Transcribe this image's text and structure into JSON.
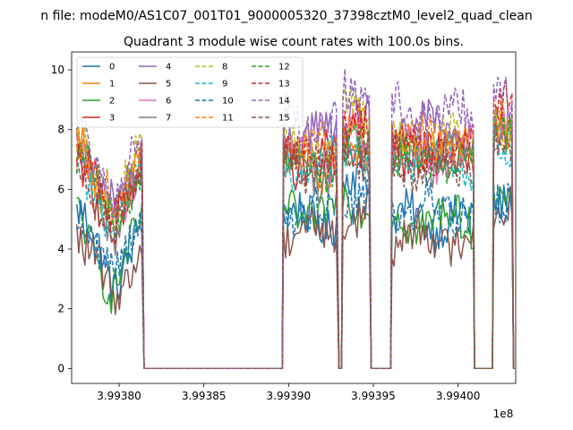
{
  "figure": {
    "suptitle": "n file: modeM0/AS1C07_001T01_9000005320_37398cztM0_level2_quad_clean",
    "title": "Quadrant 3 module wise count rates with 100.0s bins.",
    "x_offset_label": "1e8"
  },
  "chart_data": {
    "type": "line",
    "title": "Quadrant 3 module wise count rates with 100.0s bins.",
    "xlabel": "",
    "ylabel": "",
    "x_scale_factor": "1e8",
    "xlim": [
      3.993772,
      3.994034
    ],
    "ylim": [
      -0.5,
      10.6
    ],
    "grid": false,
    "legend_position": "top-left",
    "legend_columns": 4,
    "x_ticks": [
      3.9938,
      3.99385,
      3.9939,
      3.99395,
      3.994
    ],
    "x_tick_labels": [
      "3.99380",
      "3.99385",
      "3.99390",
      "3.99395",
      "3.99400"
    ],
    "y_ticks": [
      0,
      2,
      4,
      6,
      8,
      10
    ],
    "y_tick_labels": [
      "0",
      "2",
      "4",
      "6",
      "8",
      "10"
    ],
    "on_intervals": [
      [
        3.993775,
        3.993814
      ],
      [
        3.993897,
        3.993929
      ],
      [
        3.993932,
        3.993948
      ],
      [
        3.993961,
        3.994009
      ],
      [
        3.994021,
        3.994032
      ]
    ],
    "series": [
      {
        "name": "0",
        "color": "#1f77b4",
        "dash": "solid",
        "level_segments": [
          5.2,
          5.0,
          6.2,
          5.0,
          5.2
        ]
      },
      {
        "name": "1",
        "color": "#ff7f0e",
        "dash": "solid",
        "level_segments": [
          7.4,
          6.8,
          7.2,
          7.4,
          7.8
        ]
      },
      {
        "name": "2",
        "color": "#2ca02c",
        "dash": "solid",
        "level_segments": [
          5.0,
          5.2,
          5.6,
          5.0,
          5.6
        ]
      },
      {
        "name": "3",
        "color": "#d62728",
        "dash": "solid",
        "level_segments": [
          7.0,
          7.0,
          7.6,
          7.2,
          8.2
        ]
      },
      {
        "name": "4",
        "color": "#9467bd",
        "dash": "solid",
        "level_segments": [
          7.6,
          7.8,
          8.6,
          8.0,
          8.6
        ]
      },
      {
        "name": "5",
        "color": "#8c564b",
        "dash": "solid",
        "level_segments": [
          4.6,
          4.6,
          5.0,
          4.4,
          5.4
        ]
      },
      {
        "name": "6",
        "color": "#e377c2",
        "dash": "solid",
        "level_segments": [
          7.2,
          7.0,
          7.6,
          7.2,
          7.8
        ]
      },
      {
        "name": "7",
        "color": "#7f7f7f",
        "dash": "solid",
        "level_segments": [
          7.0,
          6.6,
          7.0,
          7.0,
          7.4
        ]
      },
      {
        "name": "8",
        "color": "#bcbd22",
        "dash": "dashed",
        "level_segments": [
          7.6,
          7.6,
          8.6,
          7.6,
          8.2
        ]
      },
      {
        "name": "9",
        "color": "#17becf",
        "dash": "dashed",
        "level_segments": [
          7.0,
          6.8,
          7.4,
          7.0,
          7.6
        ]
      },
      {
        "name": "10",
        "color": "#1f77b4",
        "dash": "dashed",
        "level_segments": [
          5.4,
          5.2,
          5.8,
          5.4,
          5.8
        ]
      },
      {
        "name": "11",
        "color": "#ff7f0e",
        "dash": "dashed",
        "level_segments": [
          7.6,
          7.4,
          8.2,
          7.6,
          8.0
        ]
      },
      {
        "name": "12",
        "color": "#2ca02c",
        "dash": "dashed",
        "level_segments": [
          7.2,
          6.8,
          7.4,
          7.0,
          7.6
        ]
      },
      {
        "name": "13",
        "color": "#d62728",
        "dash": "dashed",
        "level_segments": [
          7.2,
          7.0,
          8.0,
          7.4,
          8.6
        ]
      },
      {
        "name": "14",
        "color": "#9467bd",
        "dash": "dashed",
        "level_segments": [
          8.0,
          8.2,
          9.0,
          8.6,
          9.0
        ]
      },
      {
        "name": "15",
        "color": "#8c564b",
        "dash": "dashed",
        "level_segments": [
          7.0,
          6.8,
          7.2,
          6.8,
          7.4
        ]
      }
    ]
  }
}
